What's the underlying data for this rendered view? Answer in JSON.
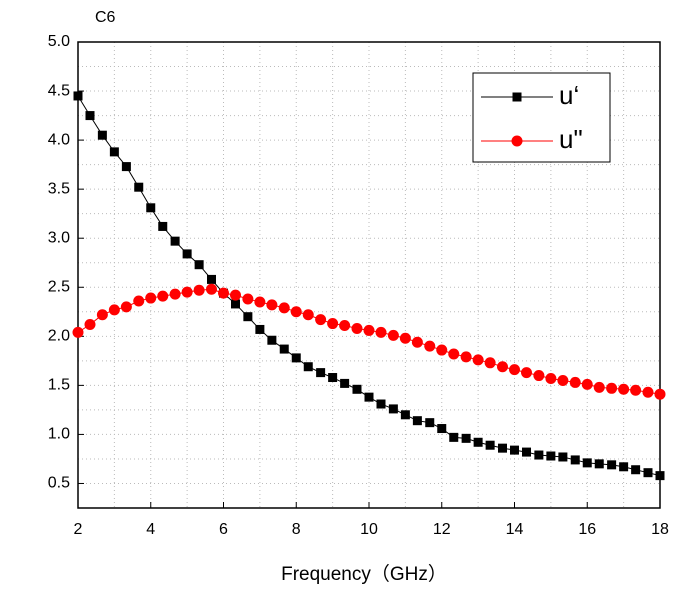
{
  "chart_data": {
    "type": "line",
    "title": "C6",
    "xlabel": "Frequency（GHz）",
    "x": [
      2,
      2.33,
      2.67,
      3,
      3.33,
      3.67,
      4,
      4.33,
      4.67,
      5,
      5.33,
      5.67,
      6,
      6.33,
      6.67,
      7,
      7.33,
      7.67,
      8,
      8.33,
      8.67,
      9,
      9.33,
      9.67,
      10,
      10.33,
      10.67,
      11,
      11.33,
      11.67,
      12,
      12.33,
      12.67,
      13,
      13.33,
      13.67,
      14,
      14.33,
      14.67,
      15,
      15.33,
      15.67,
      16,
      16.33,
      16.67,
      17,
      17.33,
      17.67,
      18
    ],
    "series": [
      {
        "name": "u‘",
        "color": "#000000",
        "marker": "square",
        "values": [
          4.45,
          4.25,
          4.05,
          3.88,
          3.73,
          3.52,
          3.31,
          3.12,
          2.97,
          2.84,
          2.73,
          2.58,
          2.44,
          2.33,
          2.2,
          2.07,
          1.96,
          1.87,
          1.78,
          1.69,
          1.63,
          1.58,
          1.52,
          1.46,
          1.38,
          1.31,
          1.26,
          1.2,
          1.14,
          1.12,
          1.06,
          0.97,
          0.96,
          0.92,
          0.89,
          0.86,
          0.84,
          0.82,
          0.79,
          0.78,
          0.77,
          0.74,
          0.71,
          0.7,
          0.69,
          0.67,
          0.64,
          0.61,
          0.58
        ]
      },
      {
        "name": "u\"",
        "color": "#ff0000",
        "marker": "circle",
        "values": [
          2.04,
          2.12,
          2.22,
          2.27,
          2.3,
          2.36,
          2.39,
          2.41,
          2.43,
          2.45,
          2.47,
          2.48,
          2.44,
          2.42,
          2.38,
          2.35,
          2.32,
          2.29,
          2.25,
          2.22,
          2.17,
          2.13,
          2.11,
          2.08,
          2.06,
          2.04,
          2.01,
          1.98,
          1.94,
          1.9,
          1.86,
          1.82,
          1.79,
          1.76,
          1.73,
          1.69,
          1.66,
          1.63,
          1.6,
          1.57,
          1.55,
          1.53,
          1.51,
          1.48,
          1.47,
          1.46,
          1.45,
          1.43,
          1.41
        ]
      }
    ],
    "xlim": [
      2,
      18
    ],
    "xticks": [
      2,
      4,
      6,
      8,
      10,
      12,
      14,
      16,
      18
    ],
    "ylim": [
      0.25,
      5
    ],
    "yticks": [
      0.5,
      {
        "value": 1,
        "label": "1.0"
      },
      1.5,
      {
        "value": 2,
        "label": "2.0"
      },
      2.5,
      {
        "value": 3,
        "label": "3.0"
      },
      3.5,
      {
        "value": 4,
        "label": "4.0"
      },
      4.5,
      {
        "value": 5,
        "label": "5.0"
      }
    ],
    "grid": true,
    "legend": "upper right"
  }
}
